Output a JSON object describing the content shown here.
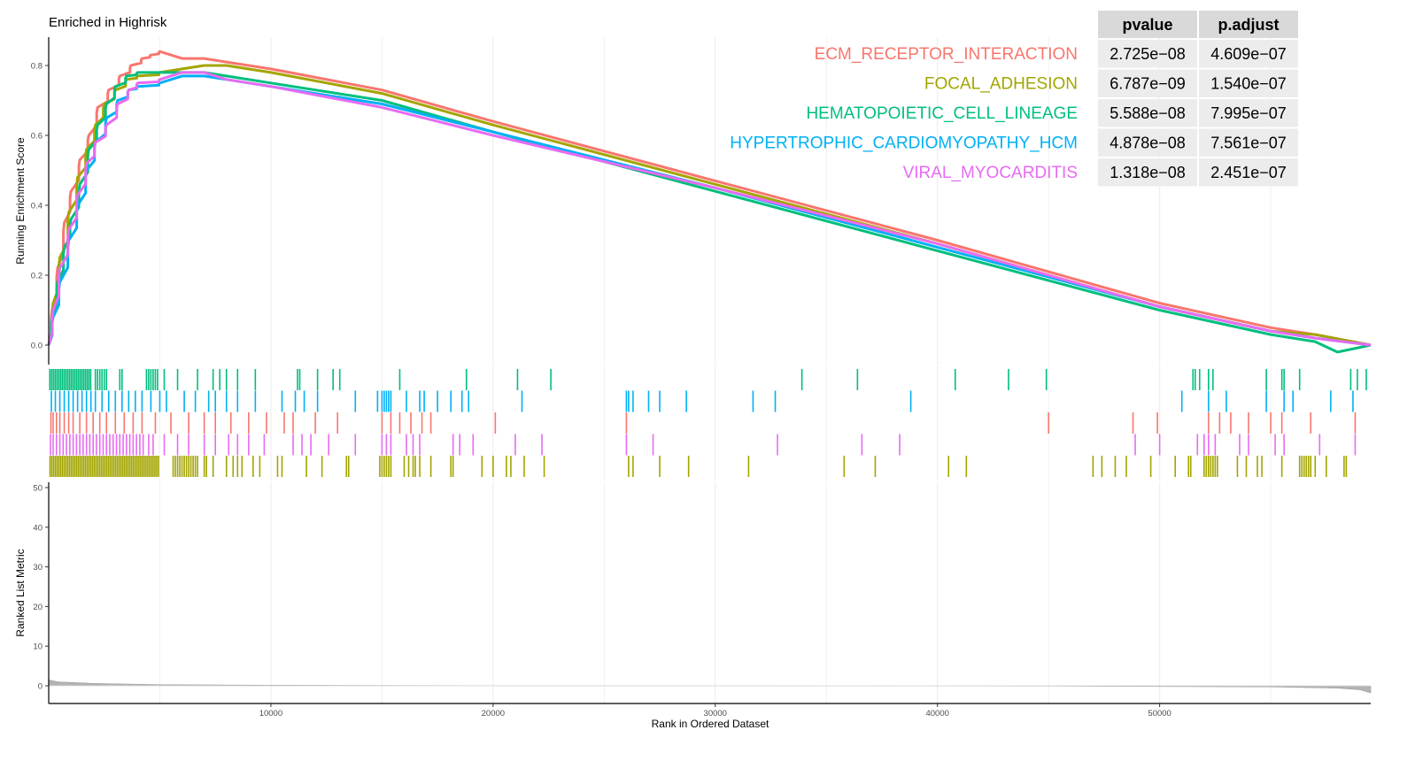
{
  "chart_data": {
    "type": "line",
    "title": "Enriched in Highrisk",
    "xlabel": "Rank in Ordered Dataset",
    "xlim": [
      0,
      59500
    ],
    "x_ticks": [
      {
        "value": 10000,
        "label": "10000"
      },
      {
        "value": 20000,
        "label": "20000"
      },
      {
        "value": 30000,
        "label": "30000"
      },
      {
        "value": 40000,
        "label": "40000"
      },
      {
        "value": 50000,
        "label": "50000"
      }
    ],
    "running_score_panel": {
      "ylabel": "Running Enrichment Score",
      "ylim": [
        -0.03,
        0.89
      ],
      "y_ticks": [
        {
          "value": 0.0,
          "label": "0.0"
        },
        {
          "value": 0.2,
          "label": "0.2"
        },
        {
          "value": 0.4,
          "label": "0.4"
        },
        {
          "value": 0.6,
          "label": "0.6"
        },
        {
          "value": 0.8,
          "label": "0.8"
        }
      ]
    },
    "ranked_metric_panel": {
      "ylabel": "Ranked List Metric",
      "ylim": [
        -2,
        51
      ],
      "y_ticks": [
        {
          "value": 0,
          "label": "0"
        },
        {
          "value": 10,
          "label": "10"
        },
        {
          "value": 20,
          "label": "20"
        },
        {
          "value": 30,
          "label": "30"
        },
        {
          "value": 40,
          "label": "40"
        },
        {
          "value": 50,
          "label": "50"
        }
      ],
      "metric_curve": [
        [
          0,
          1.5
        ],
        [
          400,
          1.0
        ],
        [
          2000,
          0.6
        ],
        [
          5000,
          0.3
        ],
        [
          10000,
          0.15
        ],
        [
          20000,
          0.05
        ],
        [
          30000,
          0.0
        ],
        [
          45000,
          -0.1
        ],
        [
          55000,
          -0.3
        ],
        [
          58000,
          -0.6
        ],
        [
          59000,
          -1.0
        ],
        [
          59500,
          -1.8
        ]
      ],
      "color": "#b3b3b3"
    },
    "series": [
      {
        "name": "ECM_RECEPTOR_INTERACTION",
        "color": "#F8766D",
        "points": [
          [
            0,
            0.0
          ],
          [
            150,
            0.1
          ],
          [
            400,
            0.22
          ],
          [
            700,
            0.35
          ],
          [
            1000,
            0.44
          ],
          [
            1400,
            0.53
          ],
          [
            1800,
            0.6
          ],
          [
            2200,
            0.68
          ],
          [
            2700,
            0.73
          ],
          [
            3200,
            0.77
          ],
          [
            3700,
            0.8
          ],
          [
            4200,
            0.82
          ],
          [
            4600,
            0.83
          ],
          [
            5000,
            0.84
          ],
          [
            6000,
            0.82
          ],
          [
            7000,
            0.82
          ],
          [
            8000,
            0.81
          ],
          [
            10000,
            0.79
          ],
          [
            15000,
            0.73
          ],
          [
            20000,
            0.64
          ],
          [
            30000,
            0.47
          ],
          [
            40000,
            0.3
          ],
          [
            50000,
            0.12
          ],
          [
            55000,
            0.05
          ],
          [
            57000,
            0.03
          ],
          [
            59500,
            0.0
          ]
        ],
        "hits": [
          100,
          200,
          350,
          500,
          700,
          900,
          1100,
          1400,
          1700,
          2000,
          2300,
          2600,
          3000,
          3400,
          3800,
          4200,
          4800,
          5500,
          6300,
          7000,
          7500,
          8200,
          9000,
          9800,
          10600,
          11000,
          12000,
          13000,
          15000,
          15400,
          15800,
          16300,
          16800,
          17200,
          20100,
          26000,
          45000,
          48800,
          49900,
          52200,
          52700,
          53200,
          54000,
          55000,
          55500,
          56800,
          58800
        ]
      },
      {
        "name": "FOCAL_ADHESION",
        "color": "#A3A500",
        "points": [
          [
            0,
            0.0
          ],
          [
            200,
            0.12
          ],
          [
            500,
            0.25
          ],
          [
            900,
            0.38
          ],
          [
            1300,
            0.48
          ],
          [
            1700,
            0.56
          ],
          [
            2100,
            0.63
          ],
          [
            2500,
            0.69
          ],
          [
            3000,
            0.73
          ],
          [
            3500,
            0.76
          ],
          [
            4000,
            0.77
          ],
          [
            5000,
            0.78
          ],
          [
            6000,
            0.79
          ],
          [
            7000,
            0.8
          ],
          [
            8000,
            0.8
          ],
          [
            10000,
            0.78
          ],
          [
            15000,
            0.72
          ],
          [
            20000,
            0.63
          ],
          [
            30000,
            0.46
          ],
          [
            40000,
            0.29
          ],
          [
            50000,
            0.11
          ],
          [
            55000,
            0.04
          ],
          [
            57000,
            0.03
          ],
          [
            59500,
            0.0
          ]
        ],
        "hits": [
          60,
          140,
          220,
          300,
          380,
          460,
          540,
          620,
          700,
          780,
          860,
          940,
          1020,
          1100,
          1180,
          1260,
          1340,
          1420,
          1500,
          1580,
          1660,
          1740,
          1820,
          1900,
          1980,
          2060,
          2140,
          2220,
          2300,
          2380,
          2460,
          2540,
          2620,
          2700,
          2780,
          2860,
          2940,
          3020,
          3100,
          3180,
          3260,
          3340,
          3420,
          3500,
          3580,
          3660,
          3740,
          3820,
          3900,
          3980,
          4060,
          4140,
          4220,
          4300,
          4380,
          4460,
          4540,
          4620,
          4700,
          4780,
          4860,
          4940,
          5600,
          5700,
          5800,
          5900,
          6000,
          6100,
          6200,
          6300,
          6400,
          6500,
          6600,
          6700,
          7000,
          7100,
          7400,
          8000,
          8300,
          8500,
          8700,
          9200,
          9500,
          10300,
          10500,
          11600,
          12300,
          13400,
          13500,
          14900,
          15000,
          15100,
          15200,
          15300,
          15400,
          16000,
          16200,
          16400,
          16500,
          16700,
          17200,
          18100,
          18200,
          19500,
          20000,
          20600,
          20800,
          21400,
          22300,
          26100,
          26300,
          27500,
          28800,
          31500,
          35800,
          37200,
          40500,
          41300,
          47000,
          47400,
          48000,
          48500,
          49600,
          50700,
          51300,
          51400,
          52000,
          52100,
          52200,
          52300,
          52400,
          52500,
          52600,
          53500,
          53900,
          54400,
          54600,
          55500,
          56300,
          56400,
          56500,
          56600,
          56700,
          56800,
          57000,
          57500,
          58300,
          58400
        ]
      },
      {
        "name": "HEMATOPOIETIC_CELL_LINEAGE",
        "color": "#00BF7D",
        "points": [
          [
            0,
            0.0
          ],
          [
            150,
            0.08
          ],
          [
            400,
            0.18
          ],
          [
            700,
            0.28
          ],
          [
            1000,
            0.36
          ],
          [
            1400,
            0.46
          ],
          [
            1800,
            0.56
          ],
          [
            2200,
            0.63
          ],
          [
            2600,
            0.69
          ],
          [
            3000,
            0.74
          ],
          [
            3500,
            0.77
          ],
          [
            4000,
            0.78
          ],
          [
            5000,
            0.78
          ],
          [
            6000,
            0.78
          ],
          [
            7000,
            0.78
          ],
          [
            8000,
            0.77
          ],
          [
            10000,
            0.75
          ],
          [
            15000,
            0.7
          ],
          [
            20000,
            0.61
          ],
          [
            30000,
            0.44
          ],
          [
            40000,
            0.27
          ],
          [
            50000,
            0.1
          ],
          [
            55000,
            0.03
          ],
          [
            57000,
            0.01
          ],
          [
            58000,
            -0.02
          ],
          [
            59500,
            0.0
          ]
        ],
        "hits": [
          50,
          130,
          210,
          290,
          370,
          450,
          530,
          610,
          690,
          770,
          850,
          930,
          1010,
          1090,
          1170,
          1250,
          1330,
          1410,
          1490,
          1570,
          1650,
          1730,
          1810,
          1890,
          2100,
          2200,
          2300,
          2400,
          2500,
          2600,
          3200,
          3300,
          4400,
          4500,
          4600,
          4700,
          4800,
          4900,
          5200,
          5800,
          6700,
          7400,
          7700,
          8000,
          8500,
          9300,
          11200,
          11300,
          12100,
          12800,
          13100,
          15800,
          18800,
          21100,
          22600,
          33900,
          36400,
          40800,
          43200,
          44900,
          51500,
          51600,
          51800,
          52200,
          52400,
          54800,
          55500,
          55600,
          56300,
          58600,
          58900,
          59300
        ]
      },
      {
        "name": "HYPERTROPHIC_CARDIOMYOPATHY_HCM",
        "color": "#00B0F6",
        "points": [
          [
            0,
            0.0
          ],
          [
            200,
            0.08
          ],
          [
            500,
            0.18
          ],
          [
            900,
            0.3
          ],
          [
            1300,
            0.4
          ],
          [
            1700,
            0.5
          ],
          [
            2100,
            0.58
          ],
          [
            2600,
            0.65
          ],
          [
            3100,
            0.7
          ],
          [
            3600,
            0.73
          ],
          [
            4000,
            0.74
          ],
          [
            5000,
            0.75
          ],
          [
            6000,
            0.77
          ],
          [
            7000,
            0.77
          ],
          [
            8000,
            0.76
          ],
          [
            10000,
            0.74
          ],
          [
            15000,
            0.69
          ],
          [
            20000,
            0.61
          ],
          [
            30000,
            0.45
          ],
          [
            40000,
            0.28
          ],
          [
            50000,
            0.11
          ],
          [
            55000,
            0.04
          ],
          [
            57000,
            0.02
          ],
          [
            59500,
            0.0
          ]
        ],
        "hits": [
          120,
          300,
          500,
          700,
          900,
          1100,
          1300,
          1500,
          1700,
          1900,
          2100,
          2400,
          2700,
          3000,
          3300,
          3600,
          3900,
          4200,
          4600,
          5000,
          5300,
          6100,
          6600,
          7200,
          7500,
          8000,
          8500,
          9300,
          10500,
          11100,
          11500,
          12100,
          13800,
          14800,
          15000,
          15100,
          15200,
          15300,
          15400,
          16100,
          16700,
          16900,
          17500,
          18100,
          18600,
          18900,
          21300,
          26000,
          26100,
          26300,
          27000,
          27500,
          28700,
          31700,
          32700,
          38800,
          51000,
          52200,
          53000,
          54800,
          55600,
          56000,
          57700,
          58700
        ]
      },
      {
        "name": "VIRAL_MYOCARDITIS",
        "color": "#E76BF3",
        "points": [
          [
            0,
            0.0
          ],
          [
            200,
            0.1
          ],
          [
            500,
            0.22
          ],
          [
            900,
            0.33
          ],
          [
            1300,
            0.43
          ],
          [
            1700,
            0.52
          ],
          [
            2100,
            0.58
          ],
          [
            2600,
            0.63
          ],
          [
            3100,
            0.69
          ],
          [
            3600,
            0.73
          ],
          [
            4000,
            0.75
          ],
          [
            5000,
            0.76
          ],
          [
            6000,
            0.78
          ],
          [
            7000,
            0.78
          ],
          [
            8000,
            0.76
          ],
          [
            10000,
            0.74
          ],
          [
            15000,
            0.68
          ],
          [
            20000,
            0.6
          ],
          [
            30000,
            0.45
          ],
          [
            40000,
            0.29
          ],
          [
            50000,
            0.11
          ],
          [
            55000,
            0.04
          ],
          [
            57000,
            0.02
          ],
          [
            59500,
            0.0
          ]
        ],
        "hits": [
          80,
          200,
          350,
          500,
          650,
          800,
          950,
          1100,
          1250,
          1400,
          1550,
          1700,
          1850,
          2000,
          2150,
          2300,
          2450,
          2600,
          2750,
          2900,
          3050,
          3200,
          3350,
          3500,
          3650,
          3800,
          3950,
          4100,
          4250,
          4500,
          4700,
          5200,
          5800,
          6300,
          7000,
          7500,
          8100,
          8500,
          9000,
          9700,
          11000,
          11400,
          11800,
          12600,
          13800,
          15000,
          15200,
          15400,
          16100,
          16400,
          16700,
          18200,
          18500,
          19100,
          21000,
          22200,
          26000,
          27200,
          32800,
          36600,
          38300,
          48900,
          50000,
          51700,
          52000,
          52200,
          52500,
          53600,
          54000,
          55200,
          55600,
          57200,
          58800
        ]
      }
    ],
    "table": {
      "headers": [
        "pvalue",
        "p.adjust"
      ],
      "rows": [
        {
          "name": "ECM_RECEPTOR_INTERACTION",
          "pvalue": "2.725e−08",
          "padjust": "4.609e−07",
          "color": "#F8766D"
        },
        {
          "name": "FOCAL_ADHESION",
          "pvalue": "6.787e−09",
          "padjust": "1.540e−07",
          "color": "#A3A500"
        },
        {
          "name": "HEMATOPOIETIC_CELL_LINEAGE",
          "pvalue": "5.588e−08",
          "padjust": "7.995e−07",
          "color": "#00BF7D"
        },
        {
          "name": "HYPERTROPHIC_CARDIOMYOPATHY_HCM",
          "pvalue": "4.878e−08",
          "padjust": "7.561e−07",
          "color": "#00B0F6"
        },
        {
          "name": "VIRAL_MYOCARDITIS",
          "pvalue": "1.318e−08",
          "padjust": "2.451e−07",
          "color": "#E76BF3"
        }
      ]
    },
    "hit_rows_order_top_to_bottom": [
      "HEMATOPOIETIC_CELL_LINEAGE",
      "HYPERTROPHIC_CARDIOMYOPATHY_HCM",
      "ECM_RECEPTOR_INTERACTION",
      "VIRAL_MYOCARDITIS",
      "FOCAL_ADHESION"
    ],
    "grid": true
  }
}
